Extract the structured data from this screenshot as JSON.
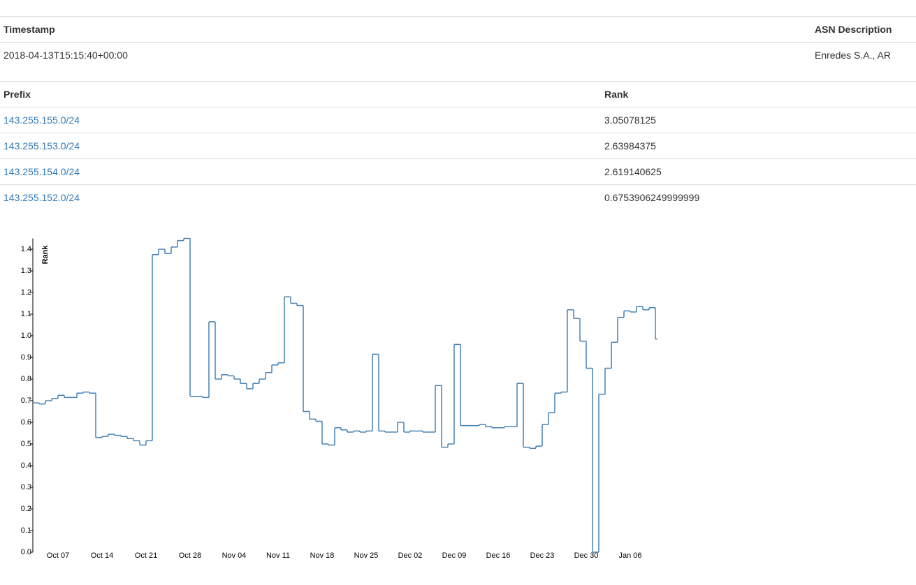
{
  "tables": [
    {
      "headers": [
        "Timestamp",
        "ASN Description"
      ],
      "rows": [
        [
          "2018-04-13T15:15:40+00:00",
          "Enredes S.A., AR"
        ]
      ]
    },
    {
      "headers": [
        "Prefix",
        "Rank"
      ],
      "rows": [
        [
          "143.255.155.0/24",
          "3.05078125"
        ],
        [
          "143.255.153.0/24",
          "2.63984375"
        ],
        [
          "143.255.154.0/24",
          "2.619140625"
        ],
        [
          "143.255.152.0/24",
          "0.6753906249999999"
        ]
      ]
    }
  ],
  "chart_data": {
    "type": "step",
    "y_label": "Rank",
    "color": "#4682b4",
    "ylim": [
      0,
      1.45
    ],
    "yticks": [
      {
        "value": 0,
        "label": "0.0"
      },
      0.1,
      0.2,
      0.3,
      0.4,
      0.5,
      0.6,
      0.7,
      0.8,
      0.9,
      {
        "value": 1,
        "label": "1.0"
      },
      1.1,
      1.2,
      1.3,
      1.4
    ],
    "categories": [
      null,
      null,
      null,
      null,
      "Oct 07",
      null,
      null,
      null,
      null,
      null,
      null,
      "Oct 14",
      null,
      null,
      null,
      null,
      null,
      null,
      "Oct 21",
      null,
      null,
      null,
      null,
      null,
      null,
      "Oct 28",
      null,
      null,
      null,
      null,
      null,
      null,
      "Nov 04",
      null,
      null,
      null,
      null,
      null,
      null,
      "Nov 11",
      null,
      null,
      null,
      null,
      null,
      null,
      "Nov 18",
      null,
      null,
      null,
      null,
      null,
      null,
      "Nov 25",
      null,
      null,
      null,
      null,
      null,
      null,
      "Dec 02",
      null,
      null,
      null,
      null,
      null,
      null,
      "Dec 09",
      null,
      null,
      null,
      null,
      null,
      null,
      "Dec 16",
      null,
      null,
      null,
      null,
      null,
      null,
      "Dec 23",
      null,
      null,
      null,
      null,
      null,
      null,
      "Dec 30",
      null,
      null,
      null,
      null,
      null,
      null,
      "Jan 06",
      null,
      null,
      null,
      null
    ],
    "values": [
      0.69,
      0.685,
      0.7,
      0.71,
      0.725,
      0.715,
      0.715,
      0.735,
      0.74,
      0.735,
      0.53,
      0.535,
      0.545,
      0.54,
      0.535,
      0.525,
      0.515,
      0.495,
      0.515,
      1.375,
      1.4,
      1.38,
      1.41,
      1.44,
      1.45,
      0.72,
      0.72,
      0.715,
      1.065,
      0.8,
      0.82,
      0.815,
      0.8,
      0.78,
      0.755,
      0.78,
      0.8,
      0.83,
      0.865,
      0.875,
      1.18,
      1.15,
      1.14,
      0.65,
      0.615,
      0.605,
      0.5,
      0.495,
      0.575,
      0.565,
      0.555,
      0.56,
      0.555,
      0.56,
      0.915,
      0.56,
      0.555,
      0.555,
      0.6,
      0.555,
      0.56,
      0.56,
      0.555,
      0.555,
      0.77,
      0.485,
      0.5,
      0.96,
      0.585,
      0.585,
      0.585,
      0.59,
      0.58,
      0.575,
      0.575,
      0.58,
      0.58,
      0.78,
      0.485,
      0.48,
      0.49,
      0.59,
      0.645,
      0.735,
      0.74,
      1.12,
      1.08,
      0.975,
      0.85,
      0,
      0.73,
      0.85,
      0.97,
      1.085,
      1.115,
      1.11,
      1.135,
      1.12,
      1.13,
      0.985
    ]
  }
}
